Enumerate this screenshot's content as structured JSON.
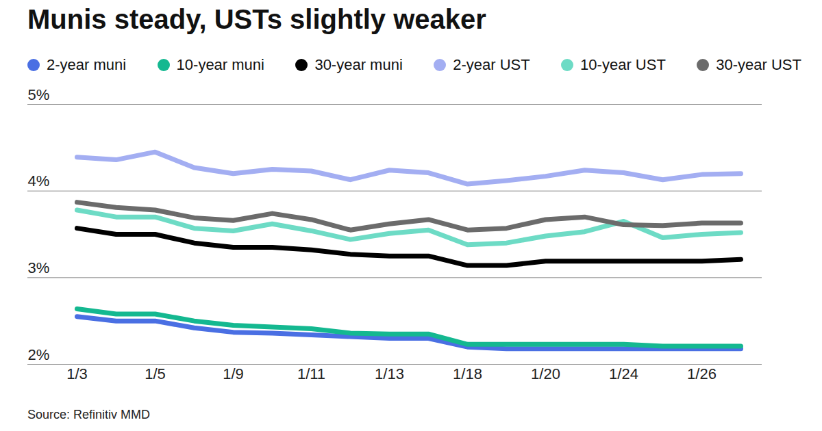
{
  "chart_data": {
    "type": "line",
    "title": "Munis steady, USTs slightly weaker",
    "source": "Source: Refinitiv MMD",
    "categories": [
      "1/3",
      null,
      "1/5",
      null,
      "1/9",
      null,
      "1/11",
      null,
      "1/13",
      null,
      "1/18",
      null,
      "1/20",
      null,
      "1/24",
      null,
      "1/26",
      null
    ],
    "series": [
      {
        "name": "2-year muni",
        "color": "#4a6fe3",
        "values": [
          2.55,
          2.5,
          2.5,
          2.42,
          2.37,
          2.36,
          2.34,
          2.32,
          2.3,
          2.3,
          2.2,
          2.18,
          2.18,
          2.18,
          2.18,
          2.18,
          2.18,
          2.18
        ]
      },
      {
        "name": "10-year muni",
        "color": "#14b890",
        "values": [
          2.64,
          2.58,
          2.58,
          2.5,
          2.45,
          2.43,
          2.41,
          2.36,
          2.35,
          2.35,
          2.23,
          2.23,
          2.23,
          2.23,
          2.23,
          2.21,
          2.21,
          2.21
        ]
      },
      {
        "name": "30-year muni",
        "color": "#000000",
        "values": [
          3.57,
          3.5,
          3.5,
          3.4,
          3.35,
          3.35,
          3.32,
          3.27,
          3.25,
          3.25,
          3.14,
          3.14,
          3.19,
          3.19,
          3.19,
          3.19,
          3.19,
          3.21
        ]
      },
      {
        "name": "2-year UST",
        "color": "#a3aef2",
        "values": [
          4.39,
          4.36,
          4.45,
          4.27,
          4.2,
          4.25,
          4.23,
          4.13,
          4.24,
          4.21,
          4.08,
          4.12,
          4.17,
          4.24,
          4.21,
          4.13,
          4.19,
          4.2
        ]
      },
      {
        "name": "10-year UST",
        "color": "#6ddbc5",
        "values": [
          3.78,
          3.7,
          3.7,
          3.57,
          3.54,
          3.62,
          3.54,
          3.44,
          3.51,
          3.55,
          3.38,
          3.4,
          3.48,
          3.53,
          3.65,
          3.46,
          3.5,
          3.52
        ]
      },
      {
        "name": "30-year UST",
        "color": "#6b6b6b",
        "values": [
          3.87,
          3.81,
          3.78,
          3.69,
          3.66,
          3.74,
          3.67,
          3.55,
          3.62,
          3.67,
          3.55,
          3.57,
          3.67,
          3.7,
          3.61,
          3.6,
          3.63,
          3.63
        ]
      }
    ],
    "ylim": [
      2,
      5
    ],
    "yticks": [
      {
        "value": 2,
        "label": "2%"
      },
      {
        "value": 3,
        "label": "3%"
      },
      {
        "value": 4,
        "label": "4%"
      },
      {
        "value": 5,
        "label": "5%"
      }
    ],
    "grid": true,
    "legend": "top"
  }
}
